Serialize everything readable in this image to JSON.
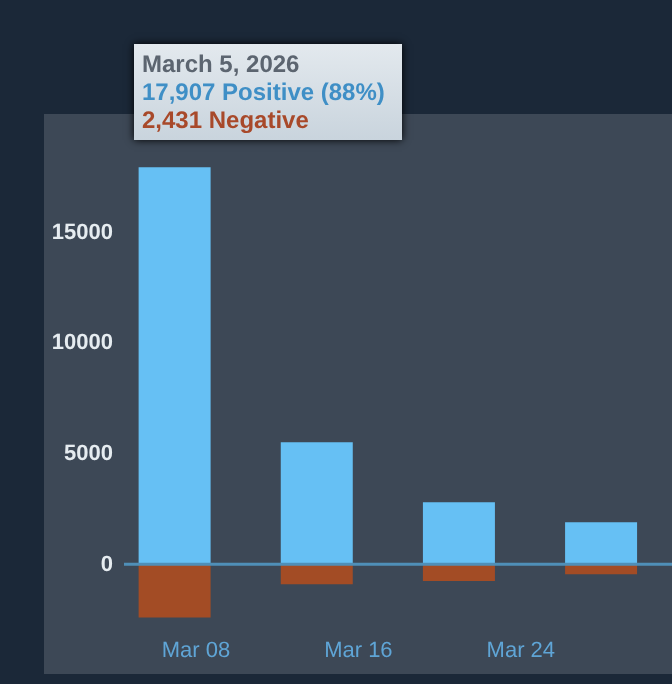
{
  "chart_data": {
    "type": "bar",
    "x": [
      "2026-03-07",
      "2026-03-14",
      "2026-03-21",
      "2026-03-28"
    ],
    "series": [
      {
        "color": "#66c0f4",
        "values": [
          17900,
          5500,
          2800,
          1900
        ]
      },
      {
        "color": "#a34c25",
        "values": [
          -2400,
          -900,
          -750,
          -450
        ]
      }
    ],
    "xlim": [
      "2026-03-05",
      "2026-03-31"
    ],
    "xticks": [
      {
        "value": "2026-03-08",
        "label": "Mar 08"
      },
      {
        "value": "2026-03-16",
        "label": "Mar 16"
      },
      {
        "value": "2026-03-24",
        "label": "Mar 24"
      }
    ],
    "stacked": true,
    "ylim": [
      -2600,
      20300
    ],
    "yticks": [
      0,
      5000,
      10000,
      15000
    ],
    "ref_lines": [
      {
        "axis": "y",
        "value": 0,
        "color": "#4f8fb8"
      }
    ],
    "grid": false,
    "annotations": [
      "March 5, 2026",
      "17,907 Positive (88%)",
      "2,431 Negative"
    ]
  }
}
